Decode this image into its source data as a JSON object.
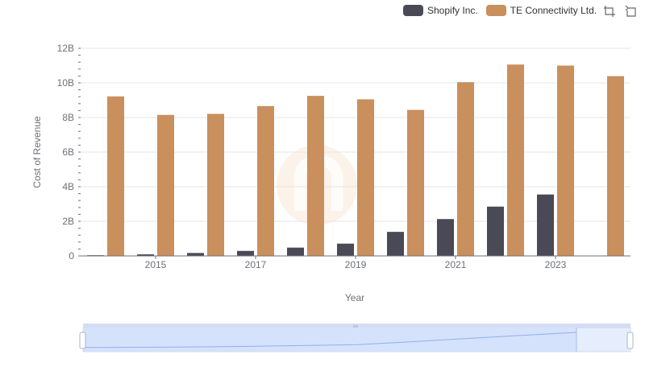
{
  "legend": [
    {
      "name": "Shopify Inc.",
      "color": "#4a4a56"
    },
    {
      "name": "TE Connectivity Ltd.",
      "color": "#c98f5c"
    }
  ],
  "toolbox": {
    "zoom_icon": "zoom-select-icon",
    "reset_icon": "zoom-reset-icon"
  },
  "chart_data": {
    "type": "bar",
    "categories": [
      "2014",
      "2015",
      "2016",
      "2017",
      "2018",
      "2019",
      "2020",
      "2021",
      "2022",
      "2023",
      "2024"
    ],
    "x_tick_labels": [
      "2015",
      "2017",
      "2019",
      "2021",
      "2023"
    ],
    "xlabel": "Year",
    "ylabel": "Cost of Revenue",
    "ylim": [
      0,
      12000000000
    ],
    "y_tick_labels": [
      "0",
      "2B",
      "4B",
      "6B",
      "8B",
      "10B",
      "12B"
    ],
    "grid": true,
    "legend_position": "top-right",
    "series": [
      {
        "name": "Shopify Inc.",
        "color": "#4a4a56",
        "values": [
          40000000,
          90000000,
          170000000,
          290000000,
          480000000,
          710000000,
          1390000000,
          2130000000,
          2850000000,
          3550000000,
          null
        ]
      },
      {
        "name": "TE Connectivity Ltd.",
        "color": "#c98f5c",
        "values": [
          9220000000,
          8150000000,
          8210000000,
          8660000000,
          9250000000,
          9050000000,
          8440000000,
          10040000000,
          11060000000,
          11000000000,
          10390000000
        ]
      }
    ]
  }
}
